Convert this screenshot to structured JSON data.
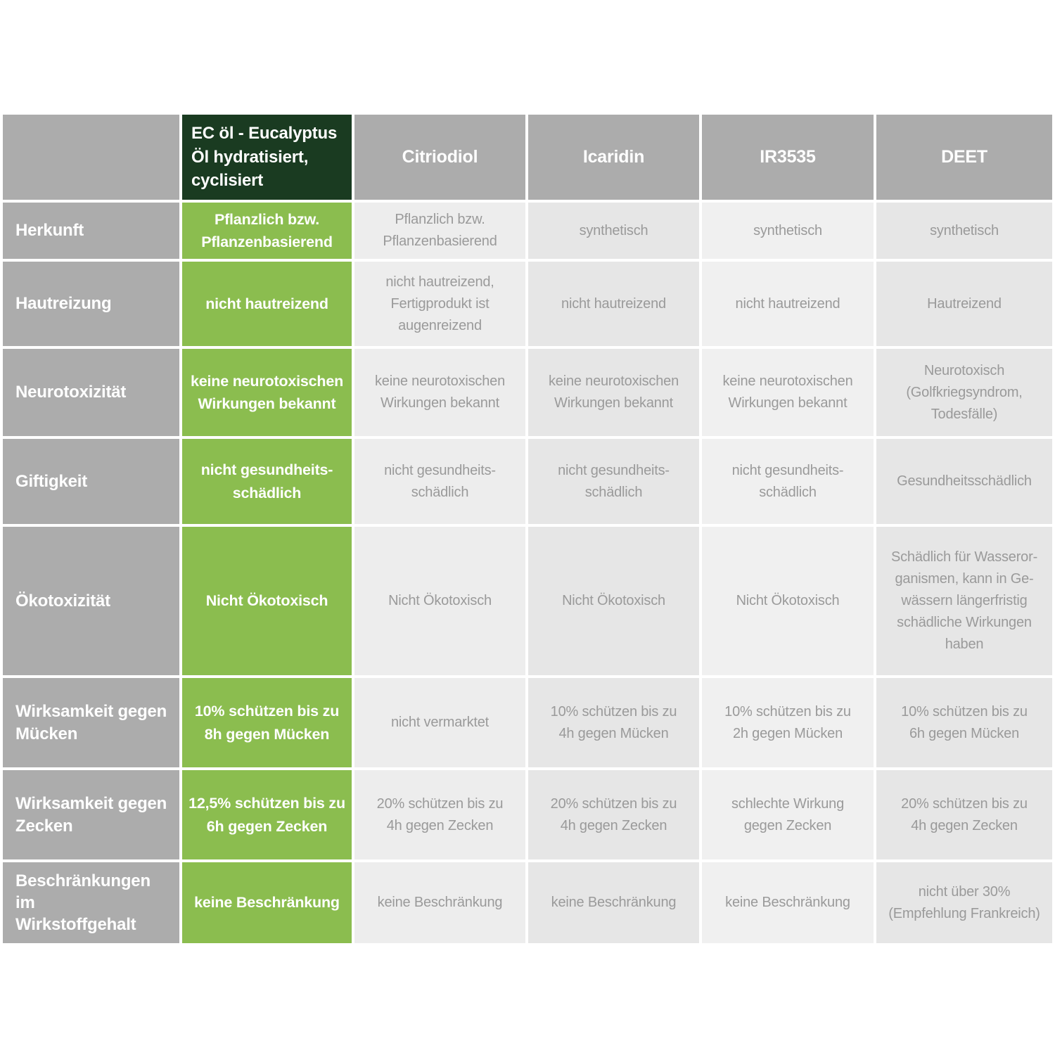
{
  "colors": {
    "header_gray": "#acacac",
    "dark_green": "#1a3b21",
    "light_green": "#8bbd4f",
    "cell_light_1": "#ededed",
    "cell_light_2": "#e6e6e6",
    "cell_light_3": "#f0f0f0",
    "data_text_gray": "#9a9a9a",
    "header_text": "#ffffff"
  },
  "table": {
    "corner": "",
    "columns": [
      {
        "label": "EC öl - Eucalyptus Öl hydratisiert, cyclisiert"
      },
      {
        "label": "Citriodiol"
      },
      {
        "label": "Icaridin"
      },
      {
        "label": "IR3535"
      },
      {
        "label": "DEET"
      }
    ],
    "rows": [
      {
        "label": "Herkunft",
        "cells": [
          "Pflanzlich bzw.\nPflanzenbasierend",
          "Pflanzlich bzw.\nPflanzenbasierend",
          "synthetisch",
          "synthetisch",
          "synthetisch"
        ]
      },
      {
        "label": "Hautreizung",
        "cells": [
          "nicht hautreizend",
          "nicht hautreizend,\nFertigprodukt ist\naugenreizend",
          "nicht hautreizend",
          "nicht hautreizend",
          "Hautreizend"
        ]
      },
      {
        "label": "Neurotoxizität",
        "cells": [
          "keine neurotoxischen\nWirkungen bekannt",
          "keine neurotoxischen\nWirkungen bekannt",
          "keine neurotoxischen\nWirkungen bekannt",
          "keine neurotoxischen\nWirkungen bekannt",
          "Neurotoxisch\n(Golfkriegsyndrom,\nTodesfälle)"
        ]
      },
      {
        "label": "Giftigkeit",
        "cells": [
          "nicht gesundheits-\nschädlich",
          "nicht gesundheits-\nschädlich",
          "nicht gesundheits-\nschädlich",
          "nicht gesundheits-\nschädlich",
          "Gesundheitsschädlich"
        ]
      },
      {
        "label": "Ökotoxizität",
        "cells": [
          "Nicht Ökotoxisch",
          "Nicht Ökotoxisch",
          "Nicht Ökotoxisch",
          "Nicht Ökotoxisch",
          "Schädlich für Wasseror-\nganismen, kann in Ge-\nwässern längerfristig\nschädliche Wirkungen\nhaben"
        ]
      },
      {
        "label": "Wirksamkeit gegen\nMücken",
        "cells": [
          "10% schützen bis zu\n8h gegen Mücken",
          "nicht vermarktet",
          "10% schützen bis zu\n4h gegen Mücken",
          "10% schützen bis zu\n2h gegen Mücken",
          "10% schützen bis zu\n6h gegen Mücken"
        ]
      },
      {
        "label": "Wirksamkeit gegen\nZecken",
        "cells": [
          "12,5% schützen bis zu\n6h gegen Zecken",
          "20% schützen bis zu\n4h gegen Zecken",
          "20% schützen bis zu\n4h gegen Zecken",
          "schlechte Wirkung\ngegen Zecken",
          "20% schützen bis zu\n4h gegen Zecken"
        ]
      },
      {
        "label": "Beschränkungen im\nWirkstoffgehalt",
        "cells": [
          "keine Beschränkung",
          "keine Beschränkung",
          "keine Beschränkung",
          "keine Beschränkung",
          "nicht über 30%\n(Empfehlung Frankreich)"
        ]
      }
    ]
  }
}
